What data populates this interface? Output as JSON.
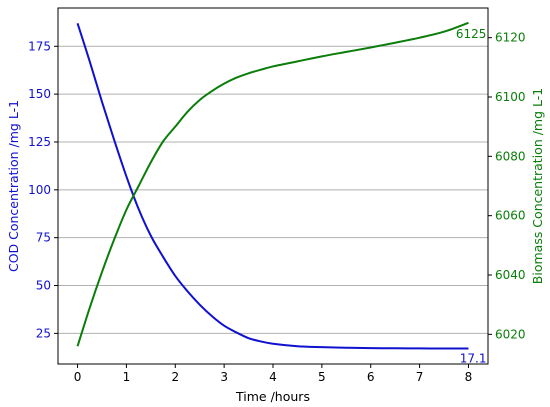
{
  "chart_data": {
    "type": "line",
    "xlabel": "Time /hours",
    "ylabel_left": "COD Concentration /mg L-1",
    "ylabel_right": "Biomass Concentration /mg L-1",
    "xlim": [
      -0.4,
      8.4
    ],
    "ylim_left": [
      9,
      195
    ],
    "ylim_right": [
      6010,
      6130
    ],
    "xticks": [
      "0",
      "1",
      "2",
      "3",
      "4",
      "5",
      "6",
      "7",
      "8"
    ],
    "yticks_left": [
      "25",
      "50",
      "75",
      "100",
      "125",
      "150",
      "175"
    ],
    "yticks_right": [
      "6020",
      "6040",
      "6060",
      "6080",
      "6100",
      "6120"
    ],
    "grid": "horizontal",
    "colors": {
      "cod": "#1010d0",
      "biomass": "#0a7d0a",
      "grid": "#b0b0b0",
      "axis": "#000000"
    },
    "series": [
      {
        "axis": "left",
        "x": [
          0,
          0.25,
          0.5,
          0.75,
          1,
          1.25,
          1.5,
          1.75,
          2,
          2.25,
          2.5,
          2.75,
          3,
          3.25,
          3.5,
          3.75,
          4,
          4.5,
          5,
          5.5,
          6,
          6.5,
          7,
          7.5,
          8
        ],
        "y": [
          187,
          167,
          146,
          126,
          107,
          90,
          76,
          65,
          55,
          47,
          40,
          34,
          29,
          25.5,
          22.5,
          20.8,
          19.6,
          18.3,
          17.8,
          17.5,
          17.3,
          17.2,
          17.15,
          17.1,
          17.1
        ]
      },
      {
        "axis": "right",
        "x": [
          0,
          0.25,
          0.5,
          0.75,
          1,
          1.25,
          1.5,
          1.75,
          2,
          2.25,
          2.5,
          2.75,
          3,
          3.25,
          3.5,
          3.75,
          4,
          4.5,
          5,
          5.5,
          6,
          6.5,
          7,
          7.5,
          8
        ],
        "y": [
          6016,
          6029,
          6041,
          6052,
          6062,
          6070,
          6078,
          6085,
          6090,
          6095,
          6099,
          6102,
          6104.5,
          6106.5,
          6108,
          6109.2,
          6110.3,
          6112,
          6113.7,
          6115.2,
          6116.7,
          6118.3,
          6120,
          6122,
          6125
        ]
      }
    ],
    "annotations": [
      {
        "text": "6125",
        "series": 1
      },
      {
        "text": "17.1",
        "series": 0
      }
    ]
  }
}
